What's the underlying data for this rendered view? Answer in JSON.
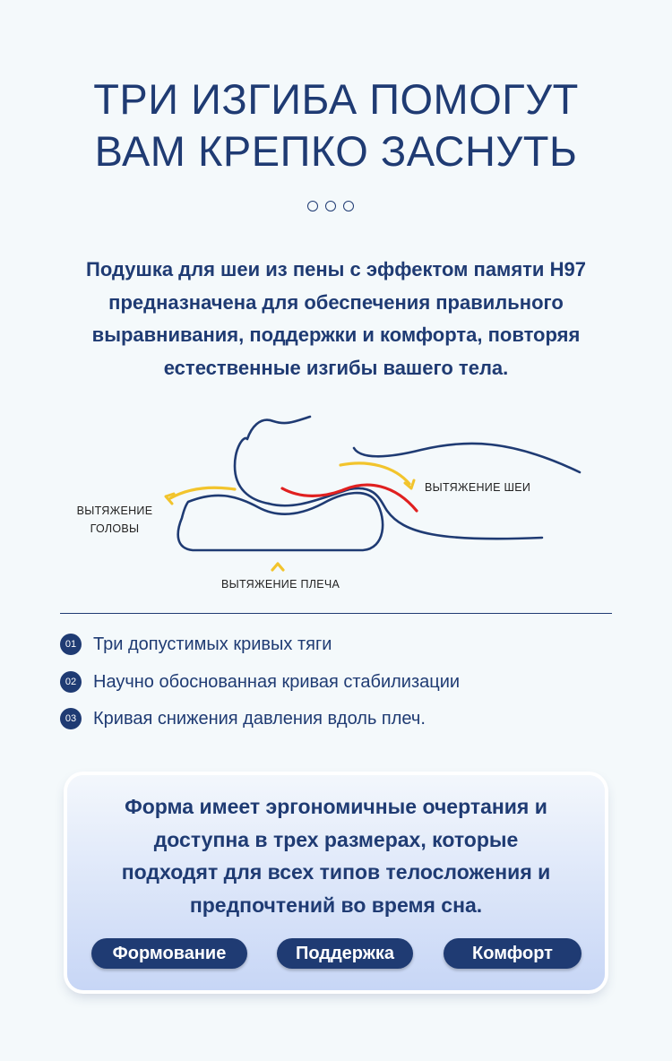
{
  "title": {
    "line1": "ТРИ ИЗГИБА ПОМОГУТ",
    "line2": "ВАМ КРЕПКО ЗАСНУТЬ"
  },
  "description": {
    "line1": "Подушка для шеи из пены с эффектом памяти H97",
    "line2": "предназначена для обеспечения правильного",
    "line3": "выравнивания, поддержки и комфорта, повторяя",
    "line4": "естественные изгибы вашего тела."
  },
  "diagram": {
    "head_label_line1": "ВЫТЯЖЕНИЕ",
    "head_label_line2": "ГОЛОВЫ",
    "neck_label": "ВЫТЯЖЕНИЕ ШЕИ",
    "shoulder_label": "ВЫТЯЖЕНИЕ ПЛЕЧА",
    "colors": {
      "outline": "#1f3b73",
      "arrow": "#f2c42c",
      "curve": "#e02020"
    }
  },
  "features": [
    {
      "num": "01",
      "text": "Три допустимых кривых тяги"
    },
    {
      "num": "02",
      "text": "Научно обоснованная кривая стабилизации"
    },
    {
      "num": "03",
      "text": "Кривая снижения давления вдоль плеч."
    }
  ],
  "card": {
    "line1": "Форма имеет эргономичные очертания и",
    "line2": "доступна в трех размерах, которые",
    "line3": "подходят для всех типов телосложения и",
    "line4": "предпочтений во время сна.",
    "buttons": [
      "Формование",
      "Поддержка",
      "Комфорт"
    ]
  },
  "colors": {
    "primary": "#1f3b73",
    "background": "#f4f9fb"
  }
}
